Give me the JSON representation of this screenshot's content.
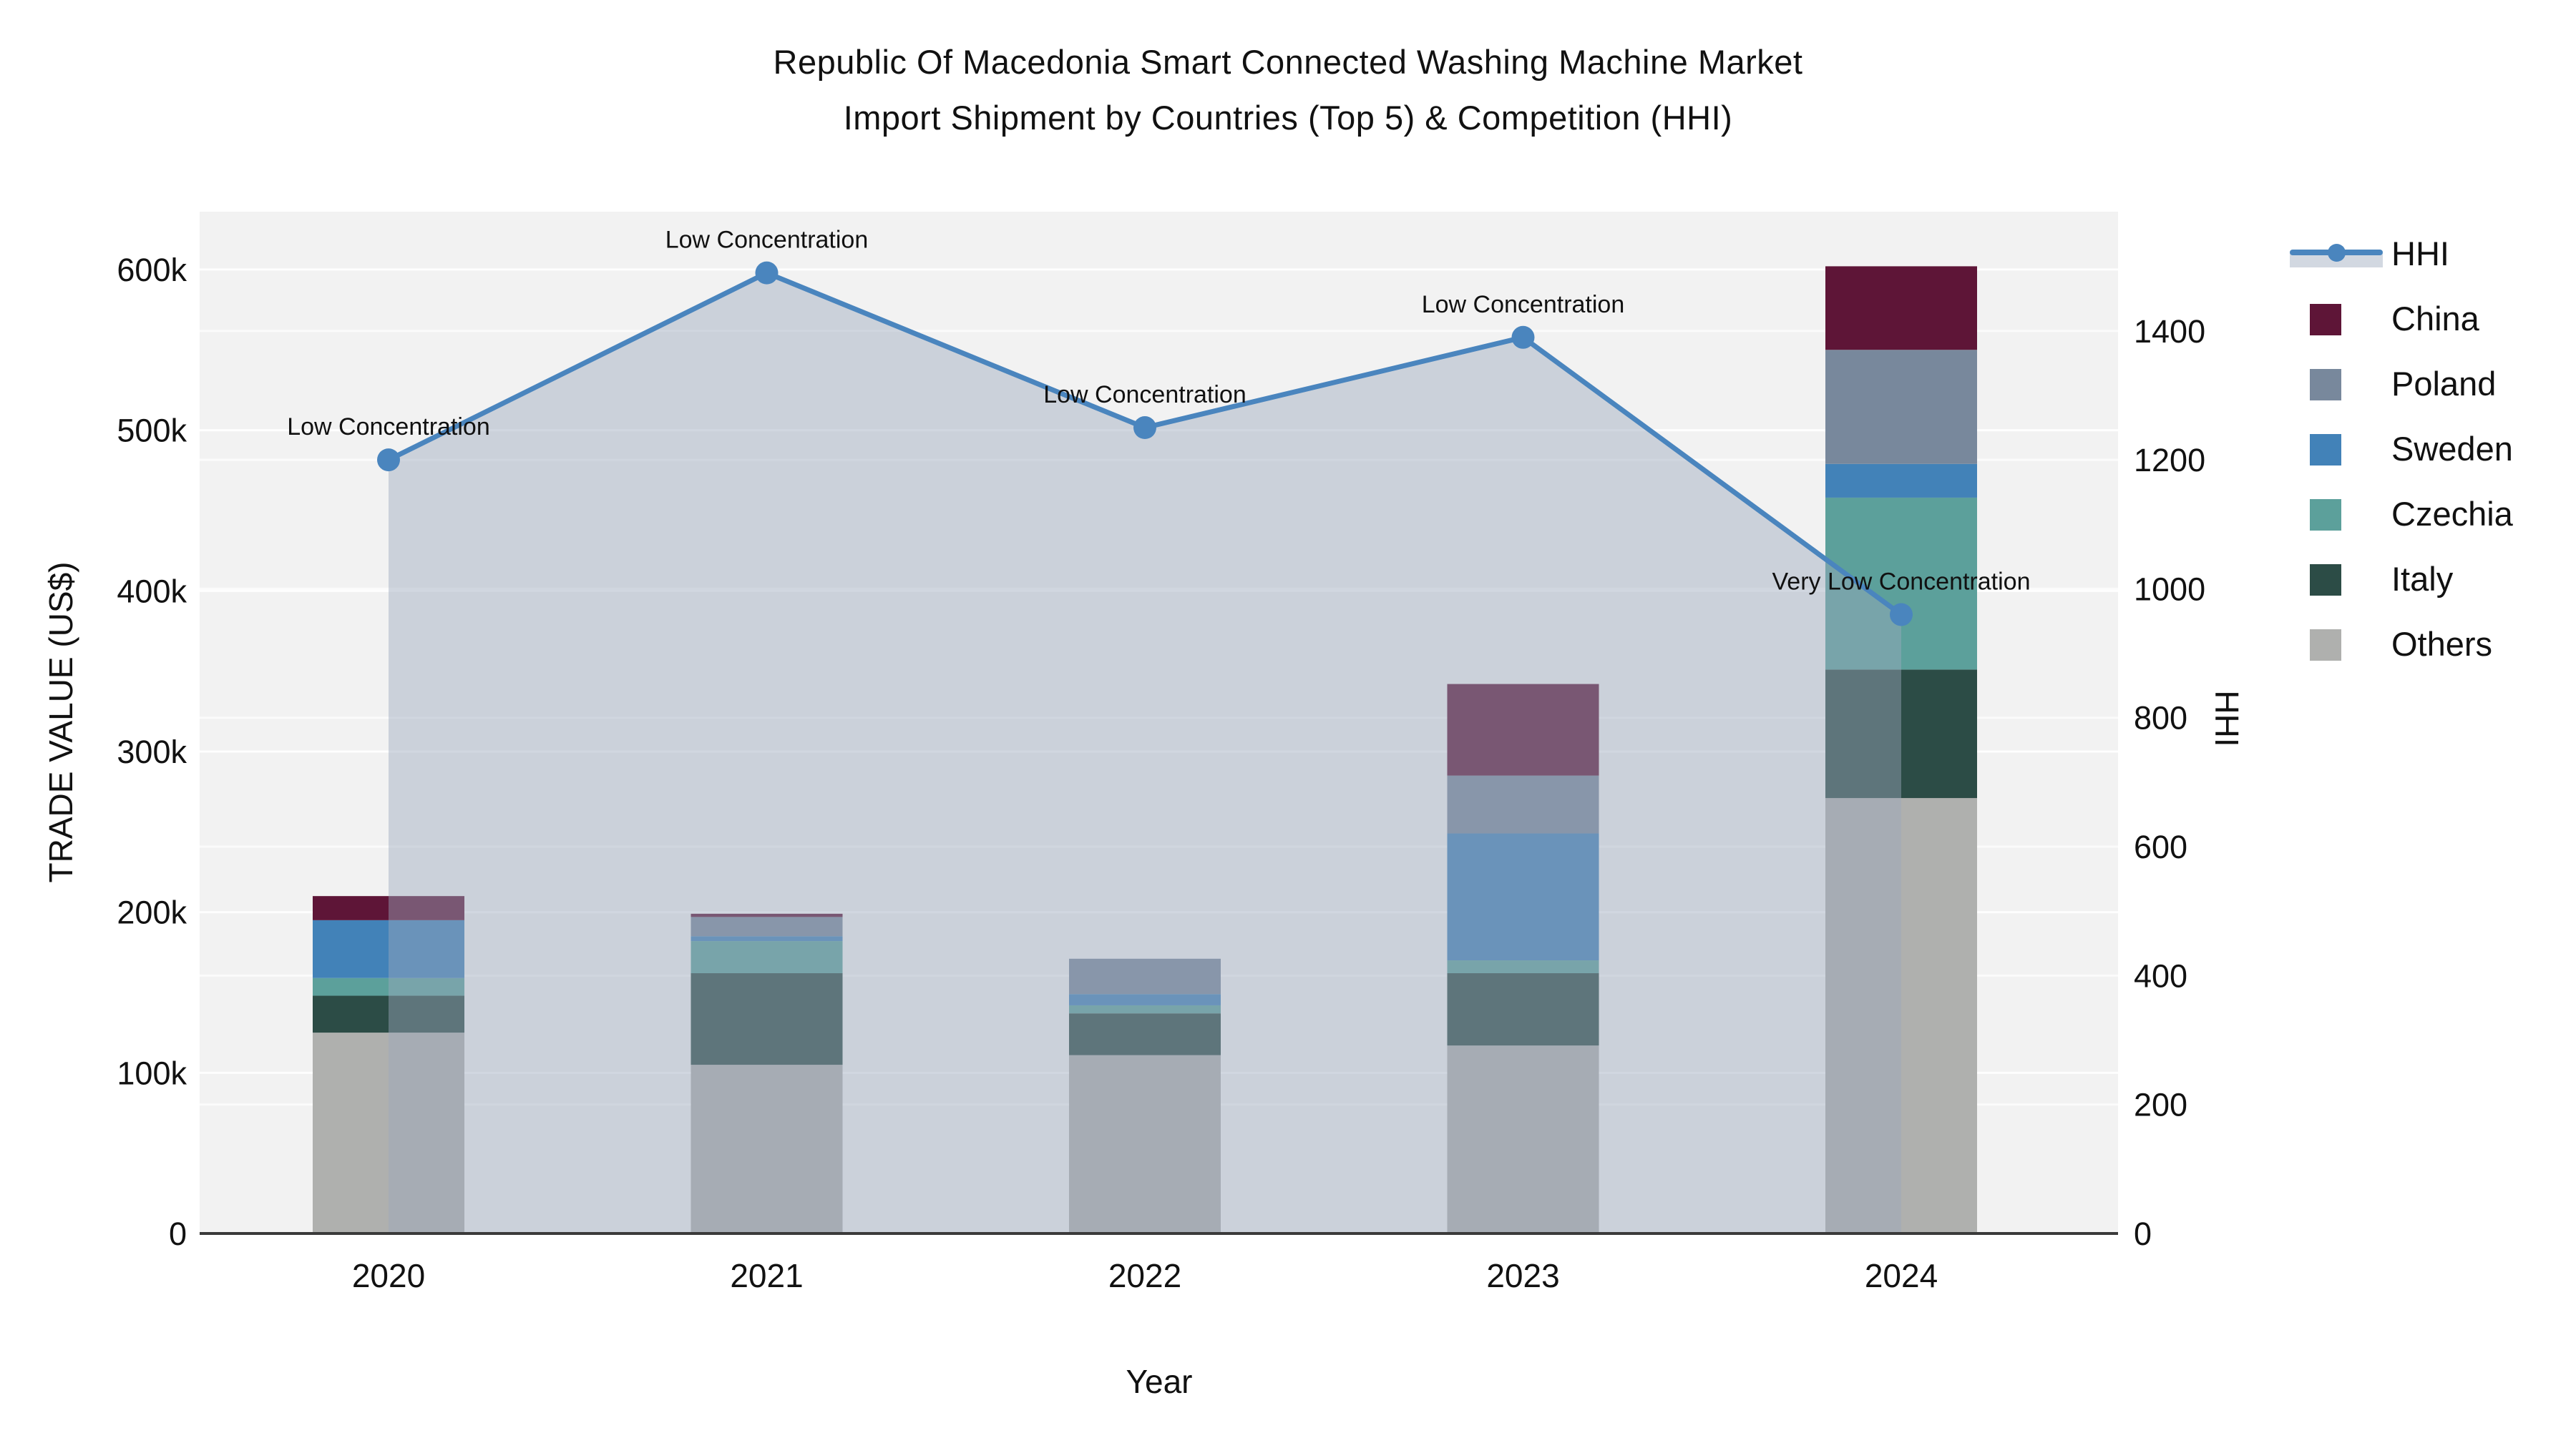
{
  "title": {
    "line1": "Republic Of Macedonia Smart Connected Washing Machine Market",
    "line2": "Import Shipment by Countries (Top 5) & Competition (HHI)"
  },
  "axes": {
    "x": {
      "title": "Year"
    },
    "y_left": {
      "title": "TRADE VALUE (US$)",
      "range_max": 636000,
      "ticks": [
        {
          "value": 0,
          "label": "0"
        },
        {
          "value": 100000,
          "label": "100k"
        },
        {
          "value": 200000,
          "label": "200k"
        },
        {
          "value": 300000,
          "label": "300k"
        },
        {
          "value": 400000,
          "label": "400k"
        },
        {
          "value": 500000,
          "label": "500k"
        },
        {
          "value": 600000,
          "label": "600k"
        }
      ]
    },
    "y_right": {
      "title": "HHI",
      "range_max": 1585,
      "ticks": [
        {
          "value": 0,
          "label": "0"
        },
        {
          "value": 200,
          "label": "200"
        },
        {
          "value": 400,
          "label": "400"
        },
        {
          "value": 600,
          "label": "600"
        },
        {
          "value": 800,
          "label": "800"
        },
        {
          "value": 1000,
          "label": "1000"
        },
        {
          "value": 1200,
          "label": "1200"
        },
        {
          "value": 1400,
          "label": "1400"
        }
      ]
    }
  },
  "chart_data": {
    "type": "combo: stacked-bar (trade value) + area-line (HHI)",
    "categories": [
      "2020",
      "2021",
      "2022",
      "2023",
      "2024"
    ],
    "bar_value_unit": "US$",
    "series": [
      {
        "name": "China",
        "color": "#5E1537",
        "values": [
          15000,
          2000,
          0,
          57000,
          52000
        ]
      },
      {
        "name": "Poland",
        "color": "#78889C",
        "values": [
          0,
          12000,
          22000,
          36000,
          71000
        ]
      },
      {
        "name": "Sweden",
        "color": "#4282B8",
        "values": [
          36000,
          3000,
          7000,
          79000,
          21000
        ]
      },
      {
        "name": "Czechia",
        "color": "#5CA09B",
        "values": [
          11000,
          20000,
          5000,
          8000,
          107000
        ]
      },
      {
        "name": "Italy",
        "color": "#2C4C46",
        "values": [
          23000,
          57000,
          26000,
          45000,
          80000
        ]
      },
      {
        "name": "Others",
        "color": "#AFB0AE",
        "values": [
          125000,
          105000,
          111000,
          117000,
          271000
        ]
      }
    ],
    "stack_note": "bars stacked bottom-up as Others, Italy, Czechia, Sweden, Poland, China",
    "hhi": {
      "name": "HHI",
      "color": "#4A85BE",
      "area_fill": "rgba(155,169,189,0.45)",
      "values": [
        1200,
        1490,
        1250,
        1390,
        960
      ]
    },
    "annotations": [
      {
        "category": "2020",
        "text": "Low Concentration"
      },
      {
        "category": "2021",
        "text": "Low Concentration"
      },
      {
        "category": "2022",
        "text": "Low Concentration"
      },
      {
        "category": "2023",
        "text": "Low Concentration"
      },
      {
        "category": "2024",
        "text": "Very Low Concentration"
      }
    ],
    "legend_order": [
      "HHI",
      "China",
      "Poland",
      "Sweden",
      "Czechia",
      "Italy",
      "Others"
    ],
    "styles": {
      "plot_bg": "#F2F2F2",
      "grid": "#FFFFFF",
      "axis_line": "#3A3A3A",
      "text": "#111111"
    }
  }
}
